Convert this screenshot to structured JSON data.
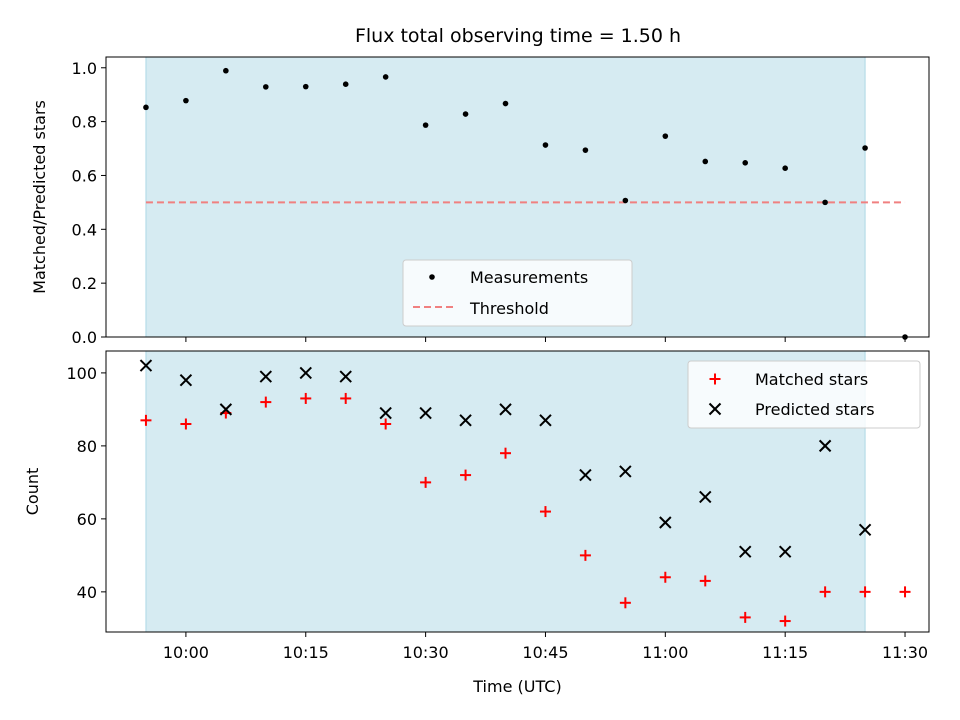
{
  "figure": {
    "title": "Flux total observing time = 1.50 h",
    "xlabel": "Time (UTC)",
    "xticks": [
      "10:00",
      "10:15",
      "10:30",
      "10:45",
      "11:00",
      "11:15",
      "11:30"
    ]
  },
  "chart_data": [
    {
      "type": "scatter",
      "ylabel": "Matched/Predicted stars",
      "ylim": [
        0,
        1.04
      ],
      "yticks": [
        "0.0",
        "0.2",
        "0.4",
        "0.6",
        "0.8",
        "1.0"
      ],
      "shaded_span": {
        "x": [
          "09:55",
          "11:25"
        ],
        "color": "#add8e6"
      },
      "legend": {
        "position": "lower-center",
        "entries": [
          "Measurements",
          "Threshold"
        ]
      },
      "series": [
        {
          "name": "Measurements",
          "marker": "dot",
          "color": "#000000",
          "x": [
            "09:55",
            "10:00",
            "10:05",
            "10:10",
            "10:15",
            "10:20",
            "10:25",
            "10:30",
            "10:35",
            "10:40",
            "10:45",
            "10:50",
            "10:55",
            "11:00",
            "11:05",
            "11:10",
            "11:15",
            "11:20",
            "11:25",
            "11:30"
          ],
          "y": [
            0.853,
            0.878,
            0.989,
            0.929,
            0.93,
            0.939,
            0.966,
            0.787,
            0.828,
            0.867,
            0.713,
            0.694,
            0.507,
            0.746,
            0.652,
            0.647,
            0.627,
            0.5,
            0.702,
            0.0
          ]
        },
        {
          "name": "Threshold",
          "style": "dashed",
          "color": "#f08080",
          "x": [
            "09:55",
            "11:30"
          ],
          "y": [
            0.5,
            0.5
          ]
        }
      ]
    },
    {
      "type": "scatter",
      "ylabel": "Count",
      "ylim": [
        29,
        106
      ],
      "yticks": [
        "40",
        "60",
        "80",
        "100"
      ],
      "shaded_span": {
        "x": [
          "09:55",
          "11:25"
        ],
        "color": "#add8e6"
      },
      "legend": {
        "position": "top-right",
        "entries": [
          "Matched stars",
          "Predicted stars"
        ]
      },
      "series": [
        {
          "name": "Matched stars",
          "marker": "plus",
          "color": "#ff0000",
          "x": [
            "09:55",
            "10:00",
            "10:05",
            "10:10",
            "10:15",
            "10:20",
            "10:25",
            "10:30",
            "10:35",
            "10:40",
            "10:45",
            "10:50",
            "10:55",
            "11:00",
            "11:05",
            "11:10",
            "11:15",
            "11:20",
            "11:25",
            "11:30"
          ],
          "y": [
            87,
            86,
            89,
            92,
            93,
            93,
            86,
            70,
            72,
            78,
            62,
            50,
            37,
            44,
            43,
            33,
            32,
            40,
            40,
            40
          ]
        },
        {
          "name": "Predicted stars",
          "marker": "x",
          "color": "#000000",
          "x": [
            "09:55",
            "10:00",
            "10:05",
            "10:10",
            "10:15",
            "10:20",
            "10:25",
            "10:30",
            "10:35",
            "10:40",
            "10:45",
            "10:50",
            "10:55",
            "11:00",
            "11:05",
            "11:10",
            "11:15",
            "11:20",
            "11:25"
          ],
          "y": [
            102,
            98,
            90,
            99,
            100,
            99,
            89,
            89,
            87,
            90,
            87,
            72,
            73,
            59,
            66,
            51,
            51,
            80,
            57
          ]
        }
      ]
    }
  ]
}
